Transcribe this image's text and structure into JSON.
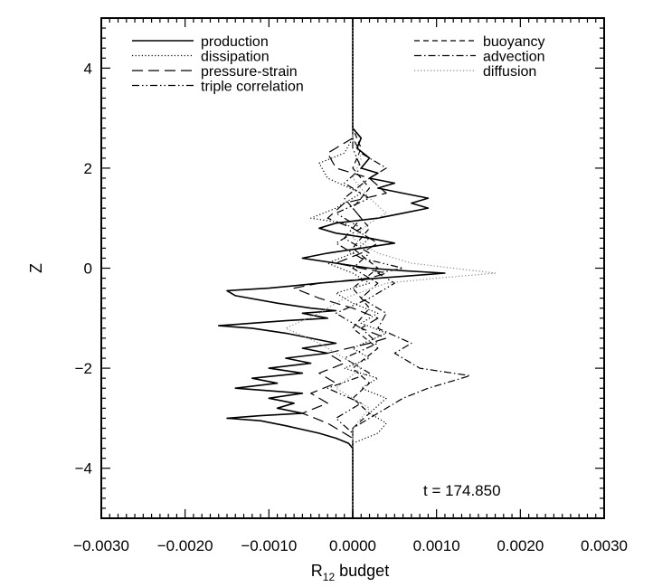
{
  "chart_data": {
    "type": "line",
    "title": "",
    "xlabel_main": "R",
    "xlabel_sub": "12",
    "xlabel_rest": " budget",
    "ylabel": "Z",
    "annotation": "t = 174.850",
    "xlim": [
      -0.003,
      0.003
    ],
    "ylim": [
      -5,
      5
    ],
    "xticks": [
      -0.003,
      -0.002,
      -0.001,
      0.0,
      0.001,
      0.002,
      0.003
    ],
    "xtick_labels": [
      "−0.0030",
      "−0.0020",
      "−0.0010",
      "0.0000",
      "0.0010",
      "0.0020",
      "0.0030"
    ],
    "yticks": [
      -4,
      -2,
      0,
      2,
      4
    ],
    "ytick_labels": [
      "−4",
      "−2",
      "0",
      "2",
      "4"
    ],
    "grid": false,
    "legend_placement": "top",
    "series": [
      {
        "name": "production",
        "style": "solid",
        "color": "#000000",
        "points": [
          [
            0.0,
            -5.0
          ],
          [
            0.0,
            -3.6
          ],
          [
            -5e-05,
            -3.5
          ],
          [
            -0.0002,
            -3.4
          ],
          [
            -0.0004,
            -3.3
          ],
          [
            -0.0008,
            -3.15
          ],
          [
            -0.0011,
            -3.05
          ],
          [
            -0.0015,
            -3.0
          ],
          [
            -0.0011,
            -2.95
          ],
          [
            -0.0006,
            -2.9
          ],
          [
            -0.0009,
            -2.8
          ],
          [
            -0.0007,
            -2.7
          ],
          [
            -0.001,
            -2.6
          ],
          [
            -0.0006,
            -2.5
          ],
          [
            -0.0014,
            -2.4
          ],
          [
            -0.0009,
            -2.3
          ],
          [
            -0.0012,
            -2.2
          ],
          [
            -0.0006,
            -2.1
          ],
          [
            -0.001,
            -2.0
          ],
          [
            -0.0005,
            -1.9
          ],
          [
            -0.0008,
            -1.8
          ],
          [
            -0.0003,
            -1.7
          ],
          [
            -0.0006,
            -1.6
          ],
          [
            -0.0002,
            -1.5
          ],
          [
            -0.0005,
            -1.4
          ],
          [
            -0.0008,
            -1.3
          ],
          [
            -0.0012,
            -1.2
          ],
          [
            -0.0016,
            -1.15
          ],
          [
            -0.0012,
            -1.1
          ],
          [
            -0.0008,
            -1.05
          ],
          [
            -0.0003,
            -1.0
          ],
          [
            -0.0006,
            -0.9
          ],
          [
            -0.0002,
            -0.85
          ],
          [
            -0.0005,
            -0.8
          ],
          [
            -0.0009,
            -0.7
          ],
          [
            -0.0014,
            -0.55
          ],
          [
            -0.0015,
            -0.45
          ],
          [
            -0.001,
            -0.4
          ],
          [
            -0.0007,
            -0.35
          ],
          [
            -0.0004,
            -0.3
          ],
          [
            0.0003,
            -0.2
          ],
          [
            0.0007,
            -0.15
          ],
          [
            0.0011,
            -0.1
          ],
          [
            0.0006,
            -0.05
          ],
          [
            0.0002,
            0.0
          ],
          [
            -0.0002,
            0.1
          ],
          [
            -0.0006,
            0.2
          ],
          [
            -0.0003,
            0.3
          ],
          [
            0.0001,
            0.4
          ],
          [
            0.0005,
            0.5
          ],
          [
            0.0002,
            0.6
          ],
          [
            -0.0002,
            0.7
          ],
          [
            -0.0004,
            0.8
          ],
          [
            -0.0002,
            0.9
          ],
          [
            0.0003,
            1.0
          ],
          [
            0.0006,
            1.1
          ],
          [
            0.0009,
            1.2
          ],
          [
            0.0007,
            1.3
          ],
          [
            0.0009,
            1.4
          ],
          [
            0.0006,
            1.5
          ],
          [
            0.0003,
            1.6
          ],
          [
            0.0005,
            1.7
          ],
          [
            0.0002,
            1.8
          ],
          [
            0.0003,
            1.9
          ],
          [
            0.0001,
            2.0
          ],
          [
            0.0002,
            2.2
          ],
          [
            5e-05,
            2.4
          ],
          [
            0.0001,
            2.6
          ],
          [
            0.0,
            2.8
          ],
          [
            0.0,
            5.0
          ]
        ]
      },
      {
        "name": "dissipation",
        "style": "dotted",
        "color": "#000000",
        "points": [
          [
            0.0,
            -5.0
          ],
          [
            0.0,
            -3.5
          ],
          [
            0.0003,
            -3.3
          ],
          [
            0.0004,
            -3.1
          ],
          [
            0.0002,
            -2.9
          ],
          [
            0.0004,
            -2.6
          ],
          [
            0.0001,
            -2.4
          ],
          [
            0.0003,
            -2.2
          ],
          [
            -0.0001,
            -2.0
          ],
          [
            0.0002,
            -1.8
          ],
          [
            0.0,
            -1.6
          ],
          [
            0.0004,
            -1.3
          ],
          [
            0.0001,
            -1.1
          ],
          [
            0.0003,
            -0.9
          ],
          [
            0.0,
            -0.7
          ],
          [
            -0.0002,
            -0.5
          ],
          [
            0.0002,
            -0.3
          ],
          [
            0.0,
            -0.1
          ],
          [
            -0.0003,
            0.1
          ],
          [
            0.0,
            0.3
          ],
          [
            0.0002,
            0.6
          ],
          [
            -0.0001,
            0.9
          ],
          [
            -0.0005,
            1.0
          ],
          [
            -0.0002,
            1.2
          ],
          [
            0.0001,
            1.5
          ],
          [
            -0.0003,
            1.8
          ],
          [
            -0.0004,
            2.1
          ],
          [
            -0.0001,
            2.3
          ],
          [
            0.0,
            2.6
          ],
          [
            0.0,
            3.0
          ],
          [
            0.0,
            5.0
          ]
        ]
      },
      {
        "name": "pressure-strain",
        "style": "longdash",
        "color": "#000000",
        "points": [
          [
            0.0,
            -5.0
          ],
          [
            0.0,
            -3.4
          ],
          [
            -0.0003,
            -3.1
          ],
          [
            -0.0006,
            -2.9
          ],
          [
            -0.0003,
            -2.7
          ],
          [
            -0.0005,
            -2.5
          ],
          [
            -0.0002,
            -2.3
          ],
          [
            -0.0004,
            -2.1
          ],
          [
            -0.0001,
            -1.9
          ],
          [
            -0.0003,
            -1.7
          ],
          [
            0.0002,
            -1.5
          ],
          [
            0.0004,
            -1.4
          ],
          [
            0.0001,
            -1.2
          ],
          [
            0.0003,
            -1.0
          ],
          [
            0.0,
            -0.8
          ],
          [
            -0.0004,
            -0.6
          ],
          [
            -0.0007,
            -0.4
          ],
          [
            -0.0004,
            -0.3
          ],
          [
            0.0002,
            -0.2
          ],
          [
            0.0004,
            -0.1
          ],
          [
            0.0001,
            0.0
          ],
          [
            -0.0002,
            0.1
          ],
          [
            0.0001,
            0.3
          ],
          [
            0.0003,
            0.5
          ],
          [
            0.0,
            0.8
          ],
          [
            -0.0003,
            1.0
          ],
          [
            -0.0001,
            1.3
          ],
          [
            0.0004,
            1.5
          ],
          [
            0.0002,
            1.8
          ],
          [
            -0.0002,
            2.0
          ],
          [
            -0.0003,
            2.3
          ],
          [
            0.0,
            2.6
          ],
          [
            0.0,
            5.0
          ]
        ]
      },
      {
        "name": "triple correlation",
        "style": "dashdotdot",
        "color": "#000000",
        "points": [
          [
            0.0,
            -5.0
          ],
          [
            0.0,
            -3.3
          ],
          [
            -0.0002,
            -3.0
          ],
          [
            0.0001,
            -2.7
          ],
          [
            -0.0003,
            -2.4
          ],
          [
            0.0002,
            -2.1
          ],
          [
            -0.0001,
            -1.8
          ],
          [
            0.0003,
            -1.5
          ],
          [
            0.0001,
            -1.2
          ],
          [
            -0.0002,
            -0.9
          ],
          [
            0.0002,
            -0.6
          ],
          [
            0.0005,
            -0.3
          ],
          [
            0.0003,
            -0.1
          ],
          [
            0.0006,
            0.0
          ],
          [
            0.0001,
            0.2
          ],
          [
            -0.0002,
            0.5
          ],
          [
            0.0001,
            0.8
          ],
          [
            -0.0002,
            1.1
          ],
          [
            0.0002,
            1.4
          ],
          [
            -0.0001,
            1.7
          ],
          [
            0.0001,
            2.0
          ],
          [
            0.0,
            2.4
          ],
          [
            0.0,
            5.0
          ]
        ]
      },
      {
        "name": "buoyancy",
        "style": "dashed",
        "color": "#000000",
        "points": [
          [
            0.0,
            -5.0
          ],
          [
            0.0,
            -3.2
          ],
          [
            0.0002,
            -2.9
          ],
          [
            0.0,
            -2.6
          ],
          [
            0.0002,
            -2.3
          ],
          [
            0.0,
            -2.0
          ],
          [
            0.0003,
            -1.6
          ],
          [
            0.0,
            -1.2
          ],
          [
            0.0002,
            -0.8
          ],
          [
            0.0,
            -0.4
          ],
          [
            0.0003,
            0.0
          ],
          [
            0.0,
            0.4
          ],
          [
            0.0002,
            0.8
          ],
          [
            0.0,
            1.2
          ],
          [
            0.0002,
            1.6
          ],
          [
            0.0,
            2.0
          ],
          [
            0.0001,
            2.4
          ],
          [
            0.0,
            2.8
          ],
          [
            0.0,
            5.0
          ]
        ]
      },
      {
        "name": "advection",
        "style": "dashdot",
        "color": "#000000",
        "points": [
          [
            0.0,
            -5.0
          ],
          [
            0.0,
            -3.2
          ],
          [
            0.0003,
            -2.9
          ],
          [
            0.0006,
            -2.6
          ],
          [
            0.0009,
            -2.4
          ],
          [
            0.0014,
            -2.15
          ],
          [
            0.0008,
            -2.0
          ],
          [
            0.0005,
            -1.7
          ],
          [
            0.0007,
            -1.5
          ],
          [
            0.0003,
            -1.2
          ],
          [
            0.0004,
            -0.9
          ],
          [
            0.0001,
            -0.6
          ],
          [
            0.0003,
            -0.3
          ],
          [
            0.0,
            0.0
          ],
          [
            0.0002,
            0.3
          ],
          [
            -0.0001,
            0.6
          ],
          [
            0.0001,
            1.0
          ],
          [
            -0.0001,
            1.4
          ],
          [
            0.0002,
            1.8
          ],
          [
            0.0004,
            2.0
          ],
          [
            0.0001,
            2.3
          ],
          [
            0.0,
            2.6
          ],
          [
            0.0,
            5.0
          ]
        ]
      },
      {
        "name": "diffusion",
        "style": "dotted",
        "color": "#888888",
        "points": [
          [
            0.0,
            -5.0
          ],
          [
            0.0,
            -3.2
          ],
          [
            0.0002,
            -2.8
          ],
          [
            -0.0002,
            -2.4
          ],
          [
            0.0001,
            -2.0
          ],
          [
            -0.0004,
            -1.5
          ],
          [
            -0.0008,
            -1.2
          ],
          [
            -0.0004,
            -0.9
          ],
          [
            -0.0001,
            -0.6
          ],
          [
            0.0004,
            -0.3
          ],
          [
            0.001,
            -0.2
          ],
          [
            0.0017,
            -0.1
          ],
          [
            0.0012,
            0.0
          ],
          [
            0.0007,
            0.1
          ],
          [
            0.0003,
            0.3
          ],
          [
            0.0,
            0.6
          ],
          [
            0.0002,
            0.9
          ],
          [
            0.0004,
            1.1
          ],
          [
            0.0002,
            1.4
          ],
          [
            0.0,
            1.8
          ],
          [
            0.0001,
            2.2
          ],
          [
            0.0,
            2.6
          ],
          [
            0.0,
            5.0
          ]
        ]
      }
    ]
  }
}
